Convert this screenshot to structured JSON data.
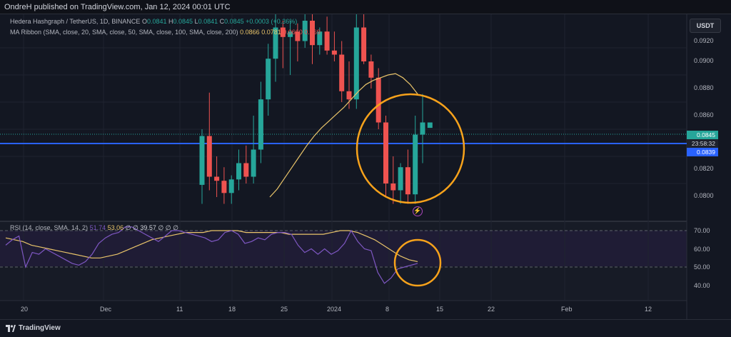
{
  "header": {
    "published": "OndreH published on TradingView.com, Jan 12, 2024 00:01 UTC"
  },
  "symbol": {
    "name": "Hedera Hashgraph / TetherUS, 1D, BINANCE",
    "o_label": "O",
    "o": "0.0841",
    "h_label": "H",
    "h": "0.0845",
    "l_label": "L",
    "l": "0.0841",
    "c_label": "C",
    "c": "0.0845",
    "change": "+0.0003 (+0.36%)"
  },
  "ma_ribbon": {
    "label": "MA Ribbon (SMA, close, 20, SMA, close, 50, SMA, close, 100, SMA, close, 200)",
    "v1": "0.0866",
    "v2": "0.0781",
    "v3": "0.0660",
    "v4": "0.069"
  },
  "rsi": {
    "label": "RSI (14, close, SMA, 14, 2)",
    "v1": "51.74",
    "v2": "53.06",
    "v3": "∅",
    "v4": "∅",
    "v5": "39.57",
    "v6": "∅",
    "v7": "∅",
    "v8": "∅"
  },
  "currency_button": "USDT",
  "price_axis": {
    "ticks": [
      "0.0900",
      "0.0880",
      "0.0860",
      "0.0820",
      "0.0800"
    ],
    "top_partial": "0.0920",
    "last_price": "0.0845",
    "countdown": "23:58:32",
    "line_price": "0.0839"
  },
  "rsi_axis": {
    "ticks": [
      "70.00",
      "60.00",
      "50.00",
      "40.00"
    ]
  },
  "time_axis": {
    "ticks": [
      "20",
      "Dec",
      "11",
      "18",
      "25",
      "2024",
      "8",
      "15",
      "22",
      "Feb",
      "12"
    ]
  },
  "footer": {
    "brand": "TradingView"
  },
  "colors": {
    "bg": "#131722",
    "up": "#26a69a",
    "down": "#ef5350",
    "ma": "#e9c46a",
    "rsi": "#7e57c2",
    "highlight": "#f7a21b",
    "hline": "#2962ff"
  },
  "chart_data": [
    {
      "type": "candlestick",
      "title": "",
      "x_ticks": [
        "20",
        "Dec",
        "11",
        "18",
        "25",
        "2024",
        "8",
        "15",
        "22",
        "Feb",
        "12"
      ],
      "ylim": [
        0.0785,
        0.0925
      ],
      "candles": [
        {
          "o": 0.0799,
          "h": 0.084,
          "l": 0.0785,
          "c": 0.0835
        },
        {
          "o": 0.0835,
          "h": 0.0867,
          "l": 0.0795,
          "c": 0.0805
        },
        {
          "o": 0.0805,
          "h": 0.082,
          "l": 0.079,
          "c": 0.0802
        },
        {
          "o": 0.0802,
          "h": 0.0812,
          "l": 0.0785,
          "c": 0.0793
        },
        {
          "o": 0.0793,
          "h": 0.0806,
          "l": 0.0785,
          "c": 0.0803
        },
        {
          "o": 0.0803,
          "h": 0.0825,
          "l": 0.0795,
          "c": 0.0815
        },
        {
          "o": 0.0815,
          "h": 0.0828,
          "l": 0.08,
          "c": 0.0805
        },
        {
          "o": 0.0805,
          "h": 0.085,
          "l": 0.08,
          "c": 0.0825
        },
        {
          "o": 0.0825,
          "h": 0.0875,
          "l": 0.0815,
          "c": 0.0862
        },
        {
          "o": 0.0862,
          "h": 0.0903,
          "l": 0.085,
          "c": 0.0892
        },
        {
          "o": 0.0892,
          "h": 0.0925,
          "l": 0.0875,
          "c": 0.0915
        },
        {
          "o": 0.0915,
          "h": 0.092,
          "l": 0.0885,
          "c": 0.0908
        },
        {
          "o": 0.0908,
          "h": 0.092,
          "l": 0.088,
          "c": 0.0912
        },
        {
          "o": 0.0912,
          "h": 0.0918,
          "l": 0.089,
          "c": 0.0905
        },
        {
          "o": 0.0905,
          "h": 0.0925,
          "l": 0.09,
          "c": 0.092
        },
        {
          "o": 0.092,
          "h": 0.0925,
          "l": 0.0888,
          "c": 0.0902
        },
        {
          "o": 0.0902,
          "h": 0.0915,
          "l": 0.0895,
          "c": 0.0912
        },
        {
          "o": 0.0912,
          "h": 0.0923,
          "l": 0.0895,
          "c": 0.0898
        },
        {
          "o": 0.0898,
          "h": 0.0912,
          "l": 0.089,
          "c": 0.0895
        },
        {
          "o": 0.0895,
          "h": 0.0905,
          "l": 0.086,
          "c": 0.0868
        },
        {
          "o": 0.0868,
          "h": 0.089,
          "l": 0.0855,
          "c": 0.0862
        },
        {
          "o": 0.0862,
          "h": 0.0925,
          "l": 0.0855,
          "c": 0.0915
        },
        {
          "o": 0.0915,
          "h": 0.0925,
          "l": 0.0888,
          "c": 0.089
        },
        {
          "o": 0.089,
          "h": 0.0895,
          "l": 0.087,
          "c": 0.0878
        },
        {
          "o": 0.0878,
          "h": 0.0885,
          "l": 0.084,
          "c": 0.0845
        },
        {
          "o": 0.0845,
          "h": 0.085,
          "l": 0.079,
          "c": 0.08
        },
        {
          "o": 0.08,
          "h": 0.082,
          "l": 0.0785,
          "c": 0.0795
        },
        {
          "o": 0.0795,
          "h": 0.0815,
          "l": 0.0785,
          "c": 0.0812
        },
        {
          "o": 0.0812,
          "h": 0.0825,
          "l": 0.0785,
          "c": 0.0792
        },
        {
          "o": 0.0792,
          "h": 0.085,
          "l": 0.0785,
          "c": 0.0836
        },
        {
          "o": 0.0836,
          "h": 0.0866,
          "l": 0.0815,
          "c": 0.0845
        },
        {
          "o": 0.0841,
          "h": 0.0845,
          "l": 0.0841,
          "c": 0.0845
        }
      ],
      "ma": [
        0.079,
        0.0796,
        0.0804,
        0.0812,
        0.082,
        0.0828,
        0.0835,
        0.0841,
        0.0846,
        0.0851,
        0.0856,
        0.0862,
        0.0868,
        0.0873,
        0.0876,
        0.0878,
        0.088,
        0.0881,
        0.0878,
        0.0873,
        0.0866
      ]
    },
    {
      "type": "line",
      "title": "",
      "ylim": [
        35,
        73
      ],
      "y_ticks": [
        70,
        60,
        50,
        40
      ],
      "series": [
        {
          "values": [
            62,
            65,
            67,
            50,
            58,
            57,
            60,
            58,
            56,
            54,
            52,
            51,
            53,
            57,
            63,
            66,
            68,
            69,
            72,
            72,
            70,
            68,
            66,
            64,
            67,
            70,
            70,
            69,
            68,
            67,
            66,
            64,
            65,
            69,
            70,
            68,
            63,
            64,
            66,
            65,
            68,
            69,
            69,
            68,
            62,
            58,
            60,
            57,
            60,
            57,
            59,
            63,
            70,
            64,
            60,
            59,
            47,
            41,
            44,
            49,
            50,
            51,
            52
          ]
        },
        {
          "values": [
            66,
            65,
            64,
            62,
            61,
            60,
            59,
            58,
            57,
            56,
            55,
            55,
            56,
            57,
            59,
            61,
            63,
            65,
            66,
            67,
            68,
            69,
            69,
            69,
            70,
            70,
            70,
            70,
            69,
            69,
            69,
            69,
            69,
            68,
            68,
            68,
            68,
            68,
            69,
            70,
            70,
            69,
            67,
            65,
            62,
            59,
            56,
            54,
            53
          ]
        }
      ]
    }
  ]
}
